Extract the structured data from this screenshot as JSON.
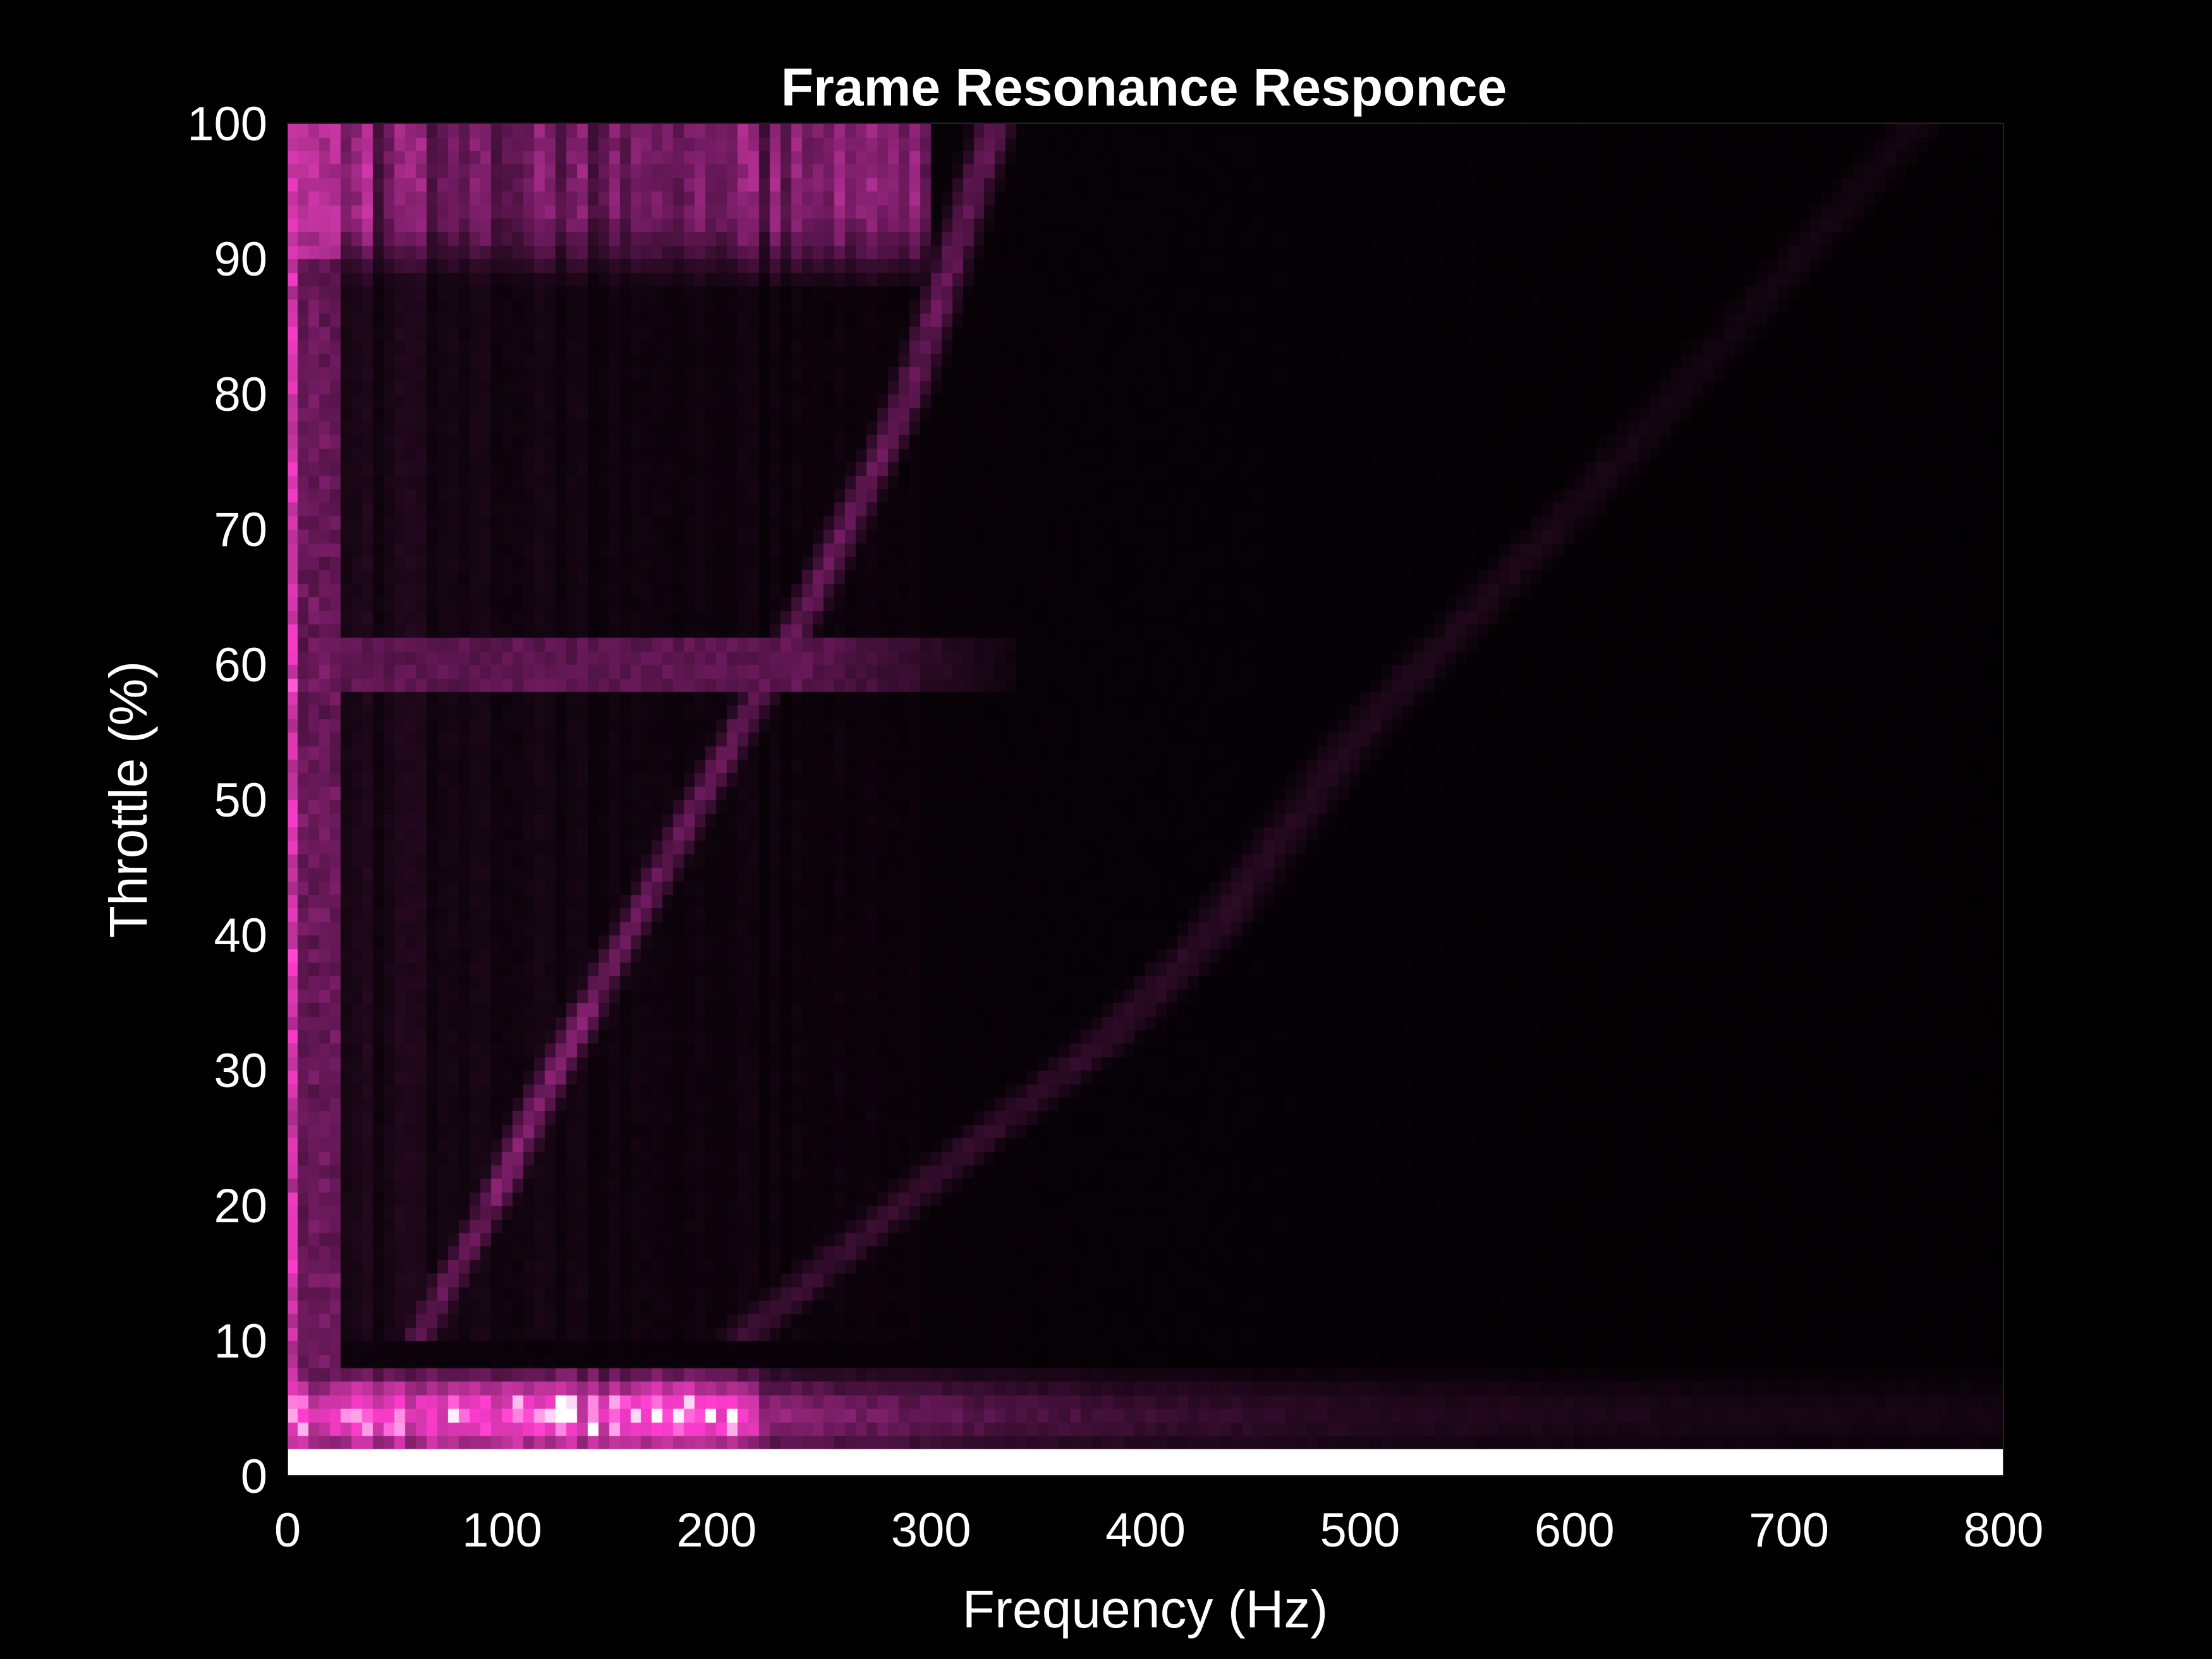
{
  "chart_data": {
    "type": "heatmap",
    "title": "Frame Resonance Responce",
    "xlabel": "Frequency (Hz)",
    "ylabel": "Throttle (%)",
    "xlim": [
      0,
      800
    ],
    "ylim": [
      0,
      100
    ],
    "xticks": [
      "0",
      "100",
      "200",
      "300",
      "400",
      "500",
      "600",
      "700",
      "800"
    ],
    "yticks": [
      "0",
      "10",
      "20",
      "30",
      "40",
      "50",
      "60",
      "70",
      "80",
      "90",
      "100"
    ],
    "grid": false,
    "legend": "none",
    "colormap": [
      "#000000",
      "#2a0a24",
      "#6e1a5e",
      "#c2349e",
      "#ff3ccf",
      "#ffffff"
    ],
    "background": "#000000",
    "text_color": "#ffffff",
    "features": {
      "low_freq_band_hz": [
        0,
        25
      ],
      "low_freq_band_strength": 0.75,
      "horizontal_resonance_throttle": 60,
      "horizontal_resonance_freq_range": [
        15,
        340
      ],
      "horizontal_resonance_strength": 0.3,
      "low_throttle_band_range": [
        2,
        7
      ],
      "low_throttle_peak_freq_range": [
        0,
        220
      ],
      "high_throttle_region_throttle": [
        90,
        100
      ],
      "high_throttle_region_freq": [
        0,
        300
      ],
      "harmonic_1_points": [
        [
          60,
          10
        ],
        [
          95,
          20
        ],
        [
          125,
          30
        ],
        [
          175,
          45
        ],
        [
          245,
          65
        ],
        [
          290,
          80
        ],
        [
          330,
          100
        ]
      ],
      "harmonic_2_points": [
        [
          210,
          10
        ],
        [
          300,
          22
        ],
        [
          380,
          32
        ],
        [
          430,
          40
        ],
        [
          500,
          55
        ],
        [
          620,
          75
        ],
        [
          760,
          100
        ]
      ],
      "bottom_white_strip_throttle": [
        0,
        2
      ]
    }
  }
}
